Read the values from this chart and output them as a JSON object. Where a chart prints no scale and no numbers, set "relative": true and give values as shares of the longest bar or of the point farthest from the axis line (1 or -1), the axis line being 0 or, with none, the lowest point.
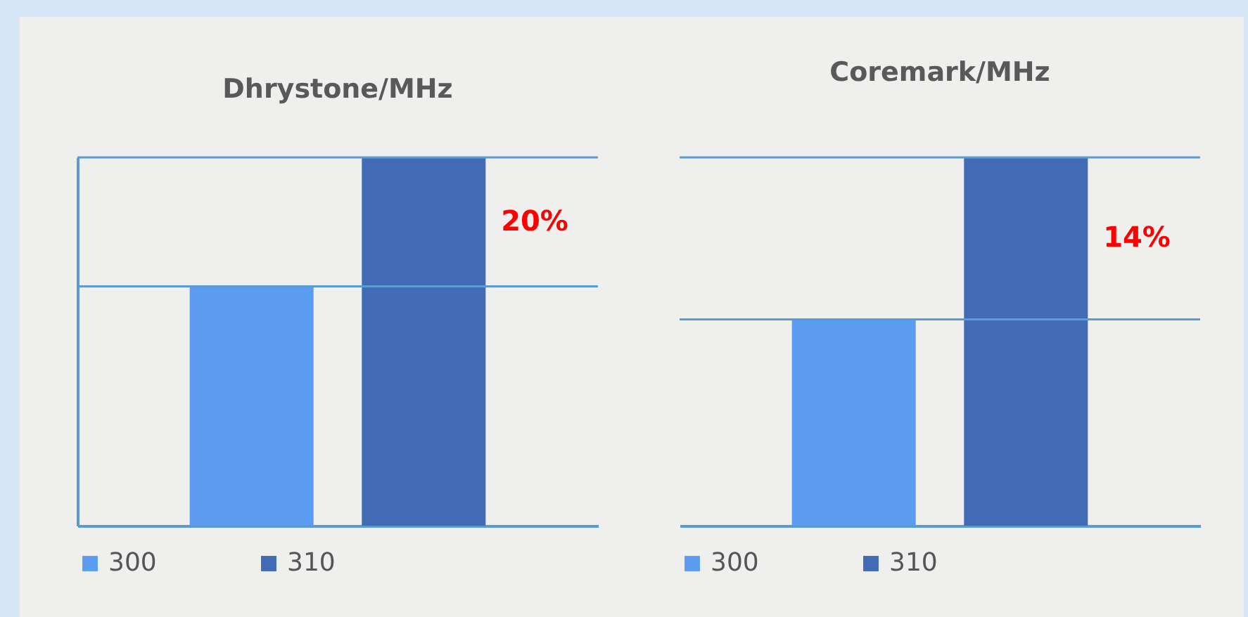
{
  "chart_data": [
    {
      "type": "bar",
      "title": "Dhrystone/MHz",
      "relative": true,
      "categories": [
        null
      ],
      "legend": "bottom",
      "annotations": [
        "20%"
      ],
      "series": [
        {
          "name": "300",
          "color": "#5b9cf0",
          "values": [
            0.65
          ]
        },
        {
          "name": "310",
          "color": "#426bb5",
          "values": [
            1
          ]
        }
      ],
      "ref_lines": [
        {
          "axis": "y",
          "value": 0.65,
          "color": "#5b9bd5"
        },
        {
          "axis": "y",
          "value": 1,
          "color": "#5b9bd5"
        }
      ]
    },
    {
      "type": "bar",
      "title": "Coremark/MHz",
      "relative": true,
      "categories": [
        null
      ],
      "legend": "bottom",
      "annotations": [
        "14%"
      ],
      "series": [
        {
          "name": "300",
          "color": "#5b9cf0",
          "values": [
            0.56
          ]
        },
        {
          "name": "310",
          "color": "#426bb5",
          "values": [
            1
          ]
        }
      ],
      "ref_lines": [
        {
          "axis": "y",
          "value": 0.56,
          "color": "#5b9bd5"
        },
        {
          "axis": "y",
          "value": 1,
          "color": "#5b9bd5"
        }
      ]
    }
  ]
}
